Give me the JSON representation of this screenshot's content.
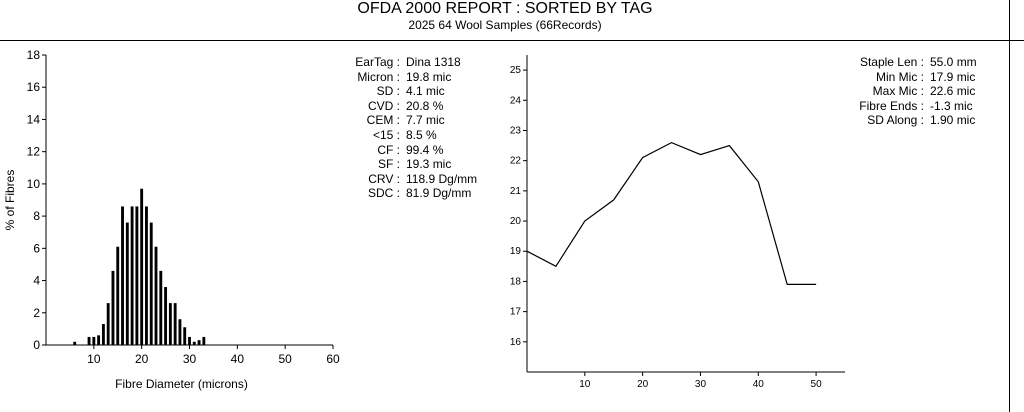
{
  "header": {
    "title": "OFDA 2000 REPORT : SORTED BY TAG",
    "subtitle": "2025 64 Wool Samples (66Records)"
  },
  "stats_left": [
    {
      "label": "EarTag :",
      "value": "Dina 1318"
    },
    {
      "label": "Micron :",
      "value": "19.8 mic"
    },
    {
      "label": "SD :",
      "value": "4.1 mic"
    },
    {
      "label": "CVD :",
      "value": "20.8 %"
    },
    {
      "label": "CEM :",
      "value": "7.7 mic"
    },
    {
      "label": "<15 :",
      "value": "8.5 %"
    },
    {
      "label": "CF :",
      "value": "99.4 %"
    },
    {
      "label": "SF :",
      "value": "19.3 mic"
    },
    {
      "label": "CRV :",
      "value": "118.9 Dg/mm"
    },
    {
      "label": "SDC :",
      "value": "81.9 Dg/mm"
    }
  ],
  "stats_right": [
    {
      "label": "Staple Len :",
      "value": "55.0 mm"
    },
    {
      "label": "Min Mic :",
      "value": "17.9 mic"
    },
    {
      "label": "Max Mic :",
      "value": "22.6 mic"
    },
    {
      "label": "Fibre Ends :",
      "value": "-1.3 mic"
    },
    {
      "label": "SD Along :",
      "value": "1.90 mic"
    }
  ],
  "chart_data": [
    {
      "type": "bar",
      "title": "",
      "xlabel": "Fibre Diameter (microns)",
      "ylabel": "% of Fibres",
      "xlim": [
        0,
        60
      ],
      "ylim": [
        0,
        18
      ],
      "xticks": [
        10,
        20,
        30,
        40,
        50,
        60
      ],
      "yticks": [
        0,
        2,
        4,
        6,
        8,
        10,
        12,
        14,
        16,
        18
      ],
      "x": [
        6,
        9,
        10,
        11,
        12,
        13,
        14,
        15,
        16,
        17,
        18,
        19,
        20,
        21,
        22,
        23,
        24,
        25,
        26,
        27,
        28,
        29,
        30,
        31,
        32,
        33
      ],
      "values": [
        0.2,
        0.5,
        0.5,
        0.6,
        1.3,
        2.6,
        4.6,
        6.1,
        8.6,
        7.6,
        8.6,
        8.6,
        9.7,
        8.6,
        7.6,
        6.1,
        4.6,
        3.6,
        2.6,
        2.6,
        1.6,
        1.1,
        0.5,
        0.2,
        0.3,
        0.5
      ],
      "color": "#000000",
      "grid": false
    },
    {
      "type": "line",
      "title": "",
      "xlabel": "",
      "ylabel": "",
      "xlim": [
        0,
        55
      ],
      "ylim": [
        15,
        25.5
      ],
      "xticks": [
        10,
        20,
        30,
        40,
        50
      ],
      "yticks": [
        16,
        17,
        18,
        19,
        20,
        21,
        22,
        23,
        24,
        25
      ],
      "x": [
        0,
        5,
        10,
        15,
        20,
        25,
        30,
        35,
        40,
        45,
        50
      ],
      "y": [
        19.0,
        18.5,
        20.0,
        20.7,
        22.1,
        22.6,
        22.2,
        22.5,
        21.3,
        17.9,
        17.9
      ],
      "color": "#000000",
      "grid": false
    }
  ]
}
